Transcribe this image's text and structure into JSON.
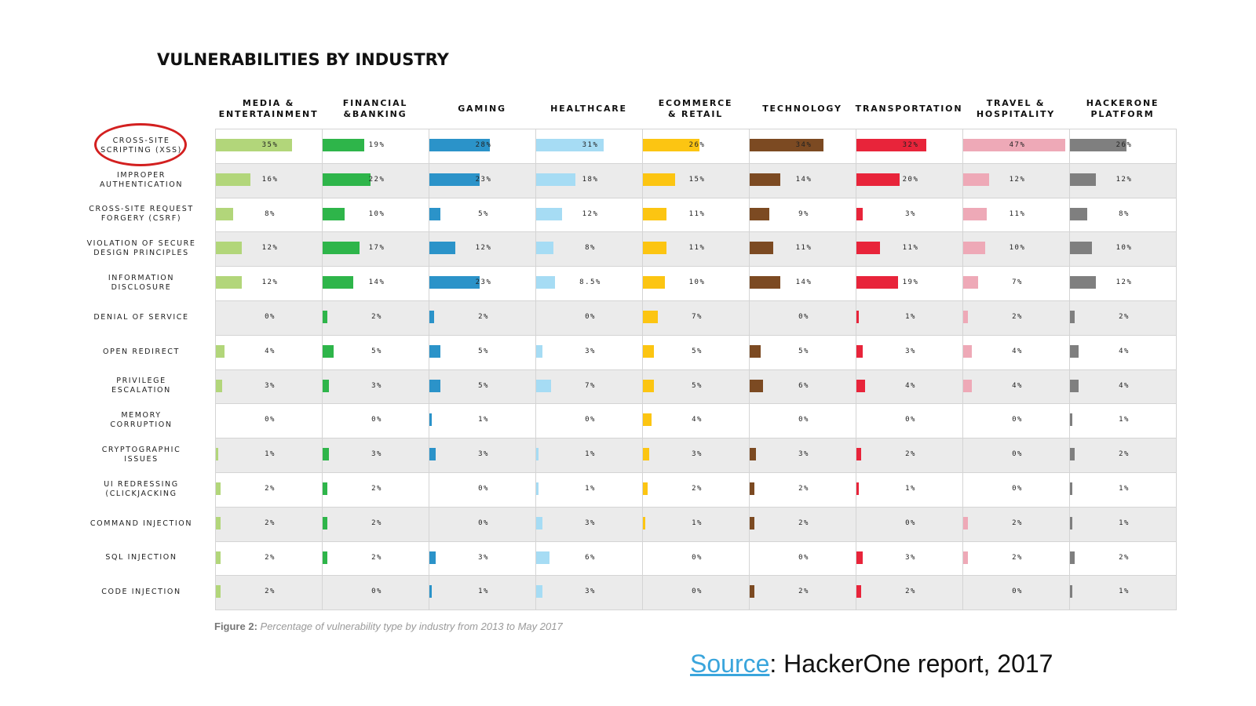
{
  "chart_data": {
    "type": "table",
    "title": "VULNERABILITIES BY INDUSTRY",
    "columns": [
      {
        "name": "MEDIA &\nENTERTAINMENT",
        "color": "#b2d67a"
      },
      {
        "name": "FINANCIAL\n&BANKING",
        "color": "#2eb54a"
      },
      {
        "name": "GAMING",
        "color": "#2b93c9"
      },
      {
        "name": "HEALTHCARE",
        "color": "#a6dcf4"
      },
      {
        "name": "ECOMMERCE\n& RETAIL",
        "color": "#fcc512"
      },
      {
        "name": "TECHNOLOGY",
        "color": "#7c4a22"
      },
      {
        "name": "TRANSPORTATION",
        "color": "#e8243a"
      },
      {
        "name": "TRAVEL &\nHOSPITALITY",
        "color": "#eea9b7"
      },
      {
        "name": "HACKERONE\nPLATFORM",
        "color": "#7f7f7f"
      }
    ],
    "rows": [
      {
        "label": "CROSS-SITE\nSCRIPTING (XSS)",
        "values": [
          35,
          19,
          28,
          31,
          26,
          34,
          32,
          47,
          26
        ],
        "labels": [
          "35%",
          "19%",
          "28%",
          "31%",
          "26%",
          "34%",
          "32%",
          "47%",
          "26%"
        ],
        "highlighted": true
      },
      {
        "label": "IMPROPER\nAUTHENTICATION",
        "values": [
          16,
          22,
          23,
          18,
          15,
          14,
          20,
          12,
          12
        ],
        "labels": [
          "16%",
          "22%",
          "23%",
          "18%",
          "15%",
          "14%",
          "20%",
          "12%",
          "12%"
        ]
      },
      {
        "label": "CROSS-SITE REQUEST\nFORGERY (CSRF)",
        "values": [
          8,
          10,
          5,
          12,
          11,
          9,
          3,
          11,
          8
        ],
        "labels": [
          "8%",
          "10%",
          "5%",
          "12%",
          "11%",
          "9%",
          "3%",
          "11%",
          "8%"
        ]
      },
      {
        "label": "VIOLATION OF SECURE\nDESIGN PRINCIPLES",
        "values": [
          12,
          17,
          12,
          8,
          11,
          11,
          11,
          10,
          10
        ],
        "labels": [
          "12%",
          "17%",
          "12%",
          "8%",
          "11%",
          "11%",
          "11%",
          "10%",
          "10%"
        ]
      },
      {
        "label": "INFORMATION\nDISCLOSURE",
        "values": [
          12,
          14,
          23,
          8.5,
          10,
          14,
          19,
          7,
          12
        ],
        "labels": [
          "12%",
          "14%",
          "23%",
          "8.5%",
          "10%",
          "14%",
          "19%",
          "7%",
          "12%"
        ]
      },
      {
        "label": "DENIAL OF SERVICE",
        "values": [
          0,
          2,
          2,
          0,
          7,
          0,
          1,
          2,
          2
        ],
        "labels": [
          "0%",
          "2%",
          "2%",
          "0%",
          "7%",
          "0%",
          "1%",
          "2%",
          "2%"
        ]
      },
      {
        "label": "OPEN REDIRECT",
        "values": [
          4,
          5,
          5,
          3,
          5,
          5,
          3,
          4,
          4
        ],
        "labels": [
          "4%",
          "5%",
          "5%",
          "3%",
          "5%",
          "5%",
          "3%",
          "4%",
          "4%"
        ]
      },
      {
        "label": "PRIVILEGE\nESCALATION",
        "values": [
          3,
          3,
          5,
          7,
          5,
          6,
          4,
          4,
          4
        ],
        "labels": [
          "3%",
          "3%",
          "5%",
          "7%",
          "5%",
          "6%",
          "4%",
          "4%",
          "4%"
        ]
      },
      {
        "label": "MEMORY\nCORRUPTION",
        "values": [
          0,
          0,
          1,
          0,
          4,
          0,
          0,
          0,
          1
        ],
        "labels": [
          "0%",
          "0%",
          "1%",
          "0%",
          "4%",
          "0%",
          "0%",
          "0%",
          "1%"
        ]
      },
      {
        "label": "CRYPTOGRAPHIC\nISSUES",
        "values": [
          1,
          3,
          3,
          1,
          3,
          3,
          2,
          0,
          2
        ],
        "labels": [
          "1%",
          "3%",
          "3%",
          "1%",
          "3%",
          "3%",
          "2%",
          "0%",
          "2%"
        ]
      },
      {
        "label": "UI REDRESSING\n(CLICKJACKING",
        "values": [
          2,
          2,
          0,
          1,
          2,
          2,
          1,
          0,
          1
        ],
        "labels": [
          "2%",
          "2%",
          "0%",
          "1%",
          "2%",
          "2%",
          "1%",
          "0%",
          "1%"
        ]
      },
      {
        "label": "COMMAND INJECTION",
        "values": [
          2,
          2,
          0,
          3,
          1,
          2,
          0,
          2,
          1
        ],
        "labels": [
          "2%",
          "2%",
          "0%",
          "3%",
          "1%",
          "2%",
          "0%",
          "2%",
          "1%"
        ]
      },
      {
        "label": "SQL INJECTION",
        "values": [
          2,
          2,
          3,
          6,
          0,
          0,
          3,
          2,
          2
        ],
        "labels": [
          "2%",
          "2%",
          "3%",
          "6%",
          "0%",
          "0%",
          "3%",
          "2%",
          "2%"
        ]
      },
      {
        "label": "CODE INJECTION",
        "values": [
          2,
          0,
          1,
          3,
          0,
          2,
          2,
          0,
          1
        ],
        "labels": [
          "2%",
          "0%",
          "1%",
          "3%",
          "0%",
          "2%",
          "2%",
          "0%",
          "1%"
        ]
      }
    ],
    "value_unit": "%",
    "xlim": [
      0,
      47
    ]
  },
  "caption": {
    "prefix": "Figure 2:",
    "text": "Percentage of vulnerability type by industry from 2013 to May 2017"
  },
  "source": {
    "link_text": "Source",
    "text": ": HackerOne report, 2017"
  }
}
